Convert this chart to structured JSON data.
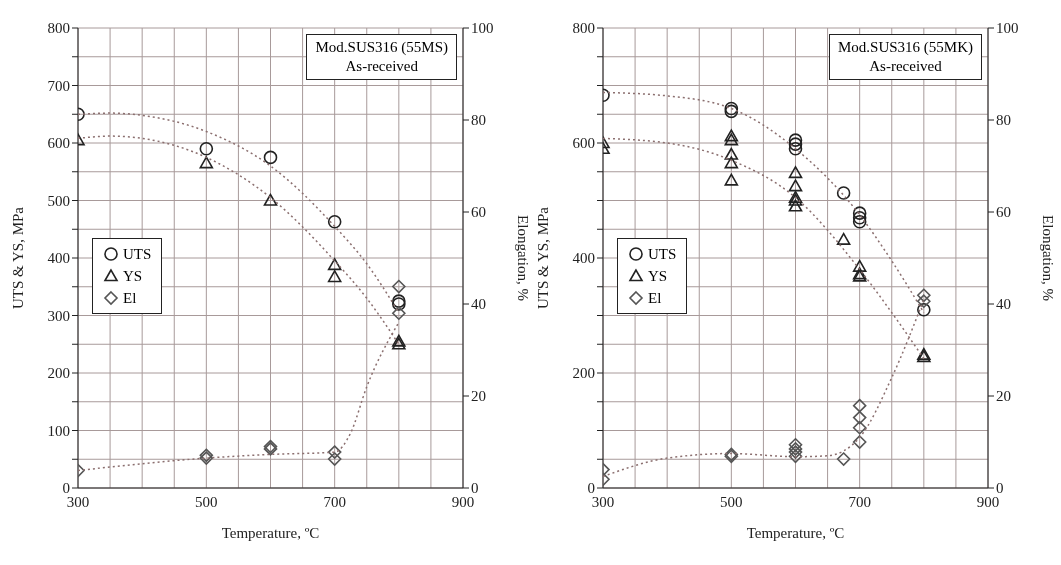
{
  "chart_data": [
    {
      "type": "scatter",
      "xlabel": "Temperature, ºC",
      "ylabel": "UTS & YS, MPa",
      "y2label": "Elongation, %",
      "annotations": [
        "Mod.SUS316 (55MS)",
        "As-received"
      ],
      "xlim": [
        300,
        900
      ],
      "xticks": [
        300,
        {
          "value": 350,
          "label": null
        },
        {
          "value": 400,
          "label": null
        },
        {
          "value": 450,
          "label": null
        },
        500,
        {
          "value": 550,
          "label": null
        },
        {
          "value": 600,
          "label": null
        },
        {
          "value": 650,
          "label": null
        },
        700,
        {
          "value": 750,
          "label": null
        },
        {
          "value": 800,
          "label": null
        },
        {
          "value": 850,
          "label": null
        },
        900
      ],
      "ylim": [
        0,
        800
      ],
      "yticks": [
        0,
        {
          "value": 50,
          "label": null
        },
        100,
        {
          "value": 150,
          "label": null
        },
        200,
        {
          "value": 250,
          "label": null
        },
        300,
        {
          "value": 350,
          "label": null
        },
        400,
        {
          "value": 450,
          "label": null
        },
        500,
        {
          "value": 550,
          "label": null
        },
        600,
        {
          "value": 650,
          "label": null
        },
        700,
        {
          "value": 750,
          "label": null
        },
        800
      ],
      "y2lim": [
        0,
        100
      ],
      "y2ticks": [
        0,
        20,
        40,
        60,
        80,
        100
      ],
      "grid": true,
      "legend": "left",
      "series": [
        {
          "name": "UTS",
          "color": "#222222",
          "marker": "circle",
          "x": [
            300,
            500,
            600,
            700,
            800,
            800
          ],
          "values": [
            650,
            590,
            575,
            463,
            320,
            325
          ]
        },
        {
          "name": "YS",
          "color": "#222222",
          "marker": "triangle",
          "x": [
            300,
            500,
            600,
            700,
            700,
            800,
            800
          ],
          "values": [
            605,
            565,
            500,
            388,
            367,
            255,
            250
          ]
        },
        {
          "name": "El",
          "color": "#555555",
          "marker": "diamond",
          "axis": "y2",
          "x": [
            300,
            500,
            500,
            600,
            600,
            700,
            700,
            800,
            800
          ],
          "values": [
            3.8,
            7.1,
            6.5,
            9,
            8.5,
            7.8,
            6.3,
            43.8,
            38
          ]
        },
        {
          "type": "line",
          "color": "#8b6f6f",
          "marker": "none",
          "line_style": "dotted",
          "x": [
            300,
            350,
            400,
            500,
            600,
            700,
            750,
            800
          ],
          "values": [
            650,
            652,
            648,
            620,
            560,
            455,
            390,
            305
          ]
        },
        {
          "type": "line",
          "color": "#8b6f6f",
          "marker": "none",
          "line_style": "dotted",
          "x": [
            300,
            350,
            400,
            500,
            600,
            700,
            750,
            800
          ],
          "values": [
            608,
            612,
            608,
            575,
            505,
            395,
            330,
            250
          ]
        },
        {
          "type": "line",
          "color": "#8b6f6f",
          "marker": "none",
          "line_style": "dotted",
          "axis": "y2",
          "x": [
            300,
            500,
            600,
            700,
            725,
            750,
            800
          ],
          "values": [
            3.8,
            6.5,
            7.3,
            7.8,
            12,
            22,
            36
          ]
        }
      ]
    },
    {
      "type": "scatter",
      "xlabel": "Temperature, ºC",
      "ylabel": "UTS & YS, MPa",
      "y2label": "Elongation, %",
      "annotations": [
        "Mod.SUS316 (55MK)",
        "As-received"
      ],
      "xlim": [
        300,
        900
      ],
      "xticks": [
        300,
        {
          "value": 350,
          "label": null
        },
        {
          "value": 400,
          "label": null
        },
        {
          "value": 450,
          "label": null
        },
        500,
        {
          "value": 550,
          "label": null
        },
        {
          "value": 600,
          "label": null
        },
        {
          "value": 650,
          "label": null
        },
        700,
        {
          "value": 750,
          "label": null
        },
        {
          "value": 800,
          "label": null
        },
        {
          "value": 850,
          "label": null
        },
        900
      ],
      "ylim": [
        0,
        800
      ],
      "yticks": [
        0,
        {
          "value": 50,
          "label": null
        },
        {
          "value": 100,
          "label": null
        },
        {
          "value": 150,
          "label": null
        },
        200,
        {
          "value": 250,
          "label": null
        },
        {
          "value": 300,
          "label": null
        },
        {
          "value": 350,
          "label": null
        },
        400,
        {
          "value": 450,
          "label": null
        },
        {
          "value": 500,
          "label": null
        },
        {
          "value": 550,
          "label": null
        },
        600,
        {
          "value": 650,
          "label": null
        },
        {
          "value": 700,
          "label": null
        },
        {
          "value": 750,
          "label": null
        },
        800
      ],
      "y2lim": [
        0,
        100
      ],
      "y2ticks": [
        0,
        20,
        40,
        60,
        80,
        100
      ],
      "grid": true,
      "legend": "left",
      "series": [
        {
          "name": "UTS",
          "color": "#222222",
          "marker": "circle",
          "x": [
            300,
            500,
            500,
            600,
            600,
            600,
            675,
            700,
            700,
            700,
            800
          ],
          "values": [
            683,
            660,
            655,
            605,
            598,
            590,
            513,
            478,
            470,
            463,
            310
          ]
        },
        {
          "name": "YS",
          "color": "#222222",
          "marker": "triangle",
          "x": [
            300,
            300,
            500,
            500,
            500,
            500,
            500,
            600,
            600,
            600,
            600,
            600,
            675,
            700,
            700,
            700,
            800,
            800
          ],
          "values": [
            600,
            590,
            612,
            605,
            580,
            565,
            535,
            548,
            525,
            505,
            500,
            490,
            432,
            385,
            372,
            368,
            232,
            228
          ]
        },
        {
          "name": "El",
          "color": "#555555",
          "marker": "diamond",
          "axis": "y2",
          "x": [
            300,
            300,
            500,
            500,
            600,
            600,
            600,
            600,
            675,
            700,
            700,
            700,
            700,
            800,
            800
          ],
          "values": [
            4,
            1.9,
            7.3,
            6.9,
            9.4,
            8.5,
            7.8,
            6.9,
            6.3,
            17.9,
            15.3,
            13.1,
            10,
            41.9,
            40.6
          ]
        },
        {
          "type": "line",
          "color": "#8b6f6f",
          "marker": "none",
          "line_style": "dotted",
          "x": [
            300,
            400,
            500,
            600,
            700,
            750,
            800
          ],
          "values": [
            688,
            682,
            660,
            590,
            475,
            395,
            305
          ]
        },
        {
          "type": "line",
          "color": "#8b6f6f",
          "marker": "none",
          "line_style": "dotted",
          "x": [
            300,
            400,
            500,
            600,
            700,
            750,
            800
          ],
          "values": [
            608,
            600,
            570,
            505,
            380,
            305,
            225
          ]
        },
        {
          "type": "line",
          "color": "#8b6f6f",
          "marker": "none",
          "line_style": "dotted",
          "axis": "y2",
          "x": [
            300,
            400,
            500,
            600,
            650,
            700,
            750,
            800
          ],
          "values": [
            2.5,
            6.5,
            7.5,
            6.8,
            7,
            11,
            24,
            41
          ]
        }
      ]
    }
  ]
}
